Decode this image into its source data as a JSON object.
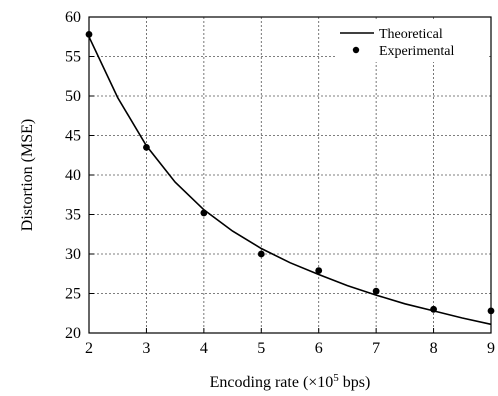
{
  "chart_data": {
    "type": "line",
    "xlabel_prefix": "Encoding rate (×10",
    "xlabel_sup": "5",
    "xlabel_suffix": " bps)",
    "ylabel": "Distortion (MSE)",
    "xlim": [
      2,
      9
    ],
    "ylim": [
      20,
      60
    ],
    "x_ticks": [
      2,
      3,
      4,
      5,
      6,
      7,
      8,
      9
    ],
    "y_ticks": [
      20,
      25,
      30,
      35,
      40,
      45,
      50,
      55,
      60
    ],
    "grid": true,
    "legend_position": "top-right",
    "series": [
      {
        "name": "Theoretical",
        "style": "line",
        "x": [
          2,
          2.5,
          3,
          3.5,
          4,
          4.5,
          5,
          5.5,
          6,
          6.5,
          7,
          7.5,
          8,
          8.5,
          9
        ],
        "y": [
          57.5,
          49.8,
          43.7,
          39.1,
          35.6,
          32.9,
          30.7,
          28.9,
          27.4,
          26.0,
          24.8,
          23.7,
          22.8,
          21.9,
          21.1
        ]
      },
      {
        "name": "Experimental",
        "style": "markers",
        "x": [
          2,
          3,
          4,
          5,
          6,
          7,
          8,
          9
        ],
        "y": [
          57.8,
          43.5,
          35.2,
          30.0,
          27.9,
          25.3,
          23.0,
          22.8
        ]
      }
    ]
  }
}
